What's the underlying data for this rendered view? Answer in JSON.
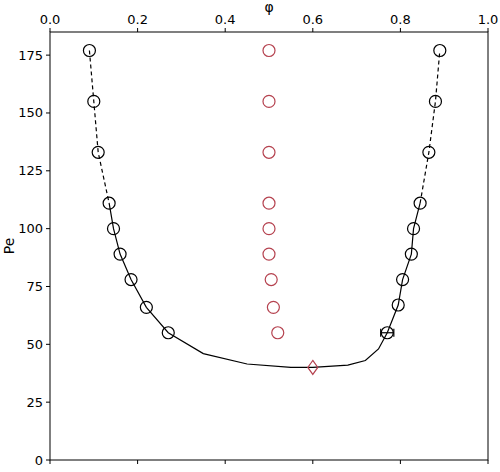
{
  "chart_data": {
    "type": "scatter",
    "x_label": "φ",
    "y_label": "Pe",
    "xlim": [
      0,
      1
    ],
    "ylim": [
      0,
      185
    ],
    "xticks": [
      {
        "value": 0,
        "label": "0.0"
      },
      0.2,
      0.4,
      0.6,
      0.8,
      {
        "value": 1,
        "label": "1.0"
      }
    ],
    "yticks": [
      0,
      25,
      50,
      75,
      100,
      125,
      150,
      175
    ],
    "grid": false,
    "series": [
      {
        "type": "scatter",
        "color": "#000000",
        "marker": "circle",
        "x": [
          0.09,
          0.1,
          0.11,
          0.135,
          0.145,
          0.16,
          0.185,
          0.22,
          0.27
        ],
        "values": [
          177,
          155,
          133,
          111,
          100,
          89,
          78,
          66,
          55
        ]
      },
      {
        "type": "scatter",
        "color": "#000000",
        "marker": "circle",
        "x": [
          0.89,
          0.88,
          0.865,
          0.845,
          0.83,
          0.825,
          0.805,
          0.795,
          0.77
        ],
        "values": [
          177,
          155,
          133,
          111,
          100,
          89,
          78,
          67,
          55
        ],
        "x_errors": [
          null,
          null,
          null,
          null,
          null,
          null,
          null,
          null,
          0.015
        ]
      },
      {
        "type": "scatter",
        "color": "#b5424f",
        "marker": "circle",
        "x": [
          0.5,
          0.5,
          0.5,
          0.5,
          0.5,
          0.5,
          0.505,
          0.51,
          0.52
        ],
        "values": [
          177,
          155,
          133,
          111,
          100,
          89,
          78,
          66,
          55
        ]
      },
      {
        "type": "scatter",
        "color": "#b5424f",
        "marker": "diamond",
        "x": [
          0.6
        ],
        "values": [
          40
        ]
      },
      {
        "type": "line",
        "color": "#000000",
        "line_style": "solid",
        "x": [
          0.135,
          0.145,
          0.16,
          0.185,
          0.22,
          0.27,
          0.35,
          0.45,
          0.55,
          0.6,
          0.68,
          0.72,
          0.75,
          0.77,
          0.795,
          0.805,
          0.825,
          0.83,
          0.845
        ],
        "values": [
          111,
          100,
          89,
          78,
          66,
          55,
          46,
          41.5,
          40,
          40,
          41,
          43,
          48,
          55,
          67,
          78,
          89,
          100,
          111
        ]
      },
      {
        "type": "line",
        "color": "#000000",
        "line_style": "dashed",
        "x": [
          0.09,
          0.1,
          0.11,
          0.135
        ],
        "values": [
          177,
          155,
          133,
          111
        ]
      },
      {
        "type": "line",
        "color": "#000000",
        "line_style": "dashed",
        "x": [
          0.845,
          0.865,
          0.88,
          0.89
        ],
        "values": [
          111,
          133,
          155,
          177
        ]
      }
    ]
  }
}
